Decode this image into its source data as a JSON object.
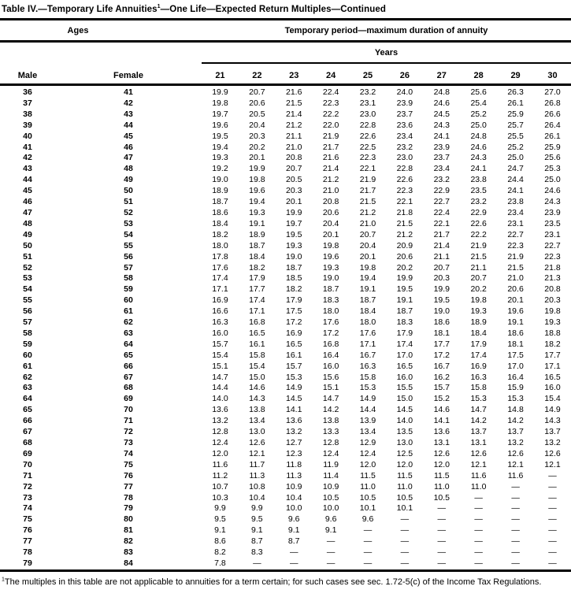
{
  "colors": {
    "text": "#000000",
    "background": "#ffffff",
    "rule": "#000000"
  },
  "title": {
    "main": "Table IV.—Temporary Life Annuities",
    "superscript": "1",
    "rest": "—One Life—Expected Return Multiples—Continued"
  },
  "header": {
    "ages_label": "Ages",
    "period_label": "Temporary period—maximum duration of annuity",
    "years_label": "Years",
    "male_label": "Male",
    "female_label": "Female",
    "year_columns": [
      "21",
      "22",
      "23",
      "24",
      "25",
      "26",
      "27",
      "28",
      "29",
      "30"
    ]
  },
  "empty_cell": "—",
  "rows": [
    {
      "male": "36",
      "female": "41",
      "values": [
        "19.9",
        "20.7",
        "21.6",
        "22.4",
        "23.2",
        "24.0",
        "24.8",
        "25.6",
        "26.3",
        "27.0"
      ]
    },
    {
      "male": "37",
      "female": "42",
      "values": [
        "19.8",
        "20.6",
        "21.5",
        "22.3",
        "23.1",
        "23.9",
        "24.6",
        "25.4",
        "26.1",
        "26.8"
      ]
    },
    {
      "male": "38",
      "female": "43",
      "values": [
        "19.7",
        "20.5",
        "21.4",
        "22.2",
        "23.0",
        "23.7",
        "24.5",
        "25.2",
        "25.9",
        "26.6"
      ]
    },
    {
      "male": "39",
      "female": "44",
      "values": [
        "19.6",
        "20.4",
        "21.2",
        "22.0",
        "22.8",
        "23.6",
        "24.3",
        "25.0",
        "25.7",
        "26.4"
      ]
    },
    {
      "male": "40",
      "female": "45",
      "values": [
        "19.5",
        "20.3",
        "21.1",
        "21.9",
        "22.6",
        "23.4",
        "24.1",
        "24.8",
        "25.5",
        "26.1"
      ]
    },
    {
      "male": "41",
      "female": "46",
      "values": [
        "19.4",
        "20.2",
        "21.0",
        "21.7",
        "22.5",
        "23.2",
        "23.9",
        "24.6",
        "25.2",
        "25.9"
      ]
    },
    {
      "male": "42",
      "female": "47",
      "values": [
        "19.3",
        "20.1",
        "20.8",
        "21.6",
        "22.3",
        "23.0",
        "23.7",
        "24.3",
        "25.0",
        "25.6"
      ]
    },
    {
      "male": "43",
      "female": "48",
      "values": [
        "19.2",
        "19.9",
        "20.7",
        "21.4",
        "22.1",
        "22.8",
        "23.4",
        "24.1",
        "24.7",
        "25.3"
      ]
    },
    {
      "male": "44",
      "female": "49",
      "values": [
        "19.0",
        "19.8",
        "20.5",
        "21.2",
        "21.9",
        "22.6",
        "23.2",
        "23.8",
        "24.4",
        "25.0"
      ]
    },
    {
      "male": "45",
      "female": "50",
      "values": [
        "18.9",
        "19.6",
        "20.3",
        "21.0",
        "21.7",
        "22.3",
        "22.9",
        "23.5",
        "24.1",
        "24.6"
      ]
    },
    {
      "male": "46",
      "female": "51",
      "values": [
        "18.7",
        "19.4",
        "20.1",
        "20.8",
        "21.5",
        "22.1",
        "22.7",
        "23.2",
        "23.8",
        "24.3"
      ]
    },
    {
      "male": "47",
      "female": "52",
      "values": [
        "18.6",
        "19.3",
        "19.9",
        "20.6",
        "21.2",
        "21.8",
        "22.4",
        "22.9",
        "23.4",
        "23.9"
      ]
    },
    {
      "male": "48",
      "female": "53",
      "values": [
        "18.4",
        "19.1",
        "19.7",
        "20.4",
        "21.0",
        "21.5",
        "22.1",
        "22.6",
        "23.1",
        "23.5"
      ]
    },
    {
      "male": "49",
      "female": "54",
      "values": [
        "18.2",
        "18.9",
        "19.5",
        "20.1",
        "20.7",
        "21.2",
        "21.7",
        "22.2",
        "22.7",
        "23.1"
      ]
    },
    {
      "male": "50",
      "female": "55",
      "values": [
        "18.0",
        "18.7",
        "19.3",
        "19.8",
        "20.4",
        "20.9",
        "21.4",
        "21.9",
        "22.3",
        "22.7"
      ]
    },
    {
      "male": "51",
      "female": "56",
      "values": [
        "17.8",
        "18.4",
        "19.0",
        "19.6",
        "20.1",
        "20.6",
        "21.1",
        "21.5",
        "21.9",
        "22.3"
      ]
    },
    {
      "male": "52",
      "female": "57",
      "values": [
        "17.6",
        "18.2",
        "18.7",
        "19.3",
        "19.8",
        "20.2",
        "20.7",
        "21.1",
        "21.5",
        "21.8"
      ]
    },
    {
      "male": "53",
      "female": "58",
      "values": [
        "17.4",
        "17.9",
        "18.5",
        "19.0",
        "19.4",
        "19.9",
        "20.3",
        "20.7",
        "21.0",
        "21.3"
      ]
    },
    {
      "male": "54",
      "female": "59",
      "values": [
        "17.1",
        "17.7",
        "18.2",
        "18.7",
        "19.1",
        "19.5",
        "19.9",
        "20.2",
        "20.6",
        "20.8"
      ]
    },
    {
      "male": "55",
      "female": "60",
      "values": [
        "16.9",
        "17.4",
        "17.9",
        "18.3",
        "18.7",
        "19.1",
        "19.5",
        "19.8",
        "20.1",
        "20.3"
      ]
    },
    {
      "male": "56",
      "female": "61",
      "values": [
        "16.6",
        "17.1",
        "17.5",
        "18.0",
        "18.4",
        "18.7",
        "19.0",
        "19.3",
        "19.6",
        "19.8"
      ]
    },
    {
      "male": "57",
      "female": "62",
      "values": [
        "16.3",
        "16.8",
        "17.2",
        "17.6",
        "18.0",
        "18.3",
        "18.6",
        "18.9",
        "19.1",
        "19.3"
      ]
    },
    {
      "male": "58",
      "female": "63",
      "values": [
        "16.0",
        "16.5",
        "16.9",
        "17.2",
        "17.6",
        "17.9",
        "18.1",
        "18.4",
        "18.6",
        "18.8"
      ]
    },
    {
      "male": "59",
      "female": "64",
      "values": [
        "15.7",
        "16.1",
        "16.5",
        "16.8",
        "17.1",
        "17.4",
        "17.7",
        "17.9",
        "18.1",
        "18.2"
      ]
    },
    {
      "male": "60",
      "female": "65",
      "values": [
        "15.4",
        "15.8",
        "16.1",
        "16.4",
        "16.7",
        "17.0",
        "17.2",
        "17.4",
        "17.5",
        "17.7"
      ]
    },
    {
      "male": "61",
      "female": "66",
      "values": [
        "15.1",
        "15.4",
        "15.7",
        "16.0",
        "16.3",
        "16.5",
        "16.7",
        "16.9",
        "17.0",
        "17.1"
      ]
    },
    {
      "male": "62",
      "female": "67",
      "values": [
        "14.7",
        "15.0",
        "15.3",
        "15.6",
        "15.8",
        "16.0",
        "16.2",
        "16.3",
        "16.4",
        "16.5"
      ]
    },
    {
      "male": "63",
      "female": "68",
      "values": [
        "14.4",
        "14.6",
        "14.9",
        "15.1",
        "15.3",
        "15.5",
        "15.7",
        "15.8",
        "15.9",
        "16.0"
      ]
    },
    {
      "male": "64",
      "female": "69",
      "values": [
        "14.0",
        "14.3",
        "14.5",
        "14.7",
        "14.9",
        "15.0",
        "15.2",
        "15.3",
        "15.3",
        "15.4"
      ]
    },
    {
      "male": "65",
      "female": "70",
      "values": [
        "13.6",
        "13.8",
        "14.1",
        "14.2",
        "14.4",
        "14.5",
        "14.6",
        "14.7",
        "14.8",
        "14.9"
      ]
    },
    {
      "male": "66",
      "female": "71",
      "values": [
        "13.2",
        "13.4",
        "13.6",
        "13.8",
        "13.9",
        "14.0",
        "14.1",
        "14.2",
        "14.2",
        "14.3"
      ]
    },
    {
      "male": "67",
      "female": "72",
      "values": [
        "12.8",
        "13.0",
        "13.2",
        "13.3",
        "13.4",
        "13.5",
        "13.6",
        "13.7",
        "13.7",
        "13.7"
      ]
    },
    {
      "male": "68",
      "female": "73",
      "values": [
        "12.4",
        "12.6",
        "12.7",
        "12.8",
        "12.9",
        "13.0",
        "13.1",
        "13.1",
        "13.2",
        "13.2"
      ]
    },
    {
      "male": "69",
      "female": "74",
      "values": [
        "12.0",
        "12.1",
        "12.3",
        "12.4",
        "12.4",
        "12.5",
        "12.6",
        "12.6",
        "12.6",
        "12.6"
      ]
    },
    {
      "male": "70",
      "female": "75",
      "values": [
        "11.6",
        "11.7",
        "11.8",
        "11.9",
        "12.0",
        "12.0",
        "12.0",
        "12.1",
        "12.1",
        "12.1"
      ]
    },
    {
      "male": "71",
      "female": "76",
      "values": [
        "11.2",
        "11.3",
        "11.3",
        "11.4",
        "11.5",
        "11.5",
        "11.5",
        "11.6",
        "11.6",
        "—"
      ]
    },
    {
      "male": "72",
      "female": "77",
      "values": [
        "10.7",
        "10.8",
        "10.9",
        "10.9",
        "11.0",
        "11.0",
        "11.0",
        "11.0",
        "—",
        "—"
      ]
    },
    {
      "male": "73",
      "female": "78",
      "values": [
        "10.3",
        "10.4",
        "10.4",
        "10.5",
        "10.5",
        "10.5",
        "10.5",
        "—",
        "—",
        "—"
      ]
    },
    {
      "male": "74",
      "female": "79",
      "values": [
        "9.9",
        "9.9",
        "10.0",
        "10.0",
        "10.1",
        "10.1",
        "—",
        "—",
        "—",
        "—"
      ]
    },
    {
      "male": "75",
      "female": "80",
      "values": [
        "9.5",
        "9.5",
        "9.6",
        "9.6",
        "9.6",
        "—",
        "—",
        "—",
        "—",
        "—"
      ]
    },
    {
      "male": "76",
      "female": "81",
      "values": [
        "9.1",
        "9.1",
        "9.1",
        "9.1",
        "—",
        "—",
        "—",
        "—",
        "—",
        "—"
      ]
    },
    {
      "male": "77",
      "female": "82",
      "values": [
        "8.6",
        "8.7",
        "8.7",
        "—",
        "—",
        "—",
        "—",
        "—",
        "—",
        "—"
      ]
    },
    {
      "male": "78",
      "female": "83",
      "values": [
        "8.2",
        "8.3",
        "—",
        "—",
        "—",
        "—",
        "—",
        "—",
        "—",
        "—"
      ]
    },
    {
      "male": "79",
      "female": "84",
      "values": [
        "7.8",
        "—",
        "—",
        "—",
        "—",
        "—",
        "—",
        "—",
        "—",
        "—"
      ]
    }
  ],
  "footnote": {
    "superscript": "1",
    "text": "The multiples in this table are not applicable to annuities for a term certain; for such cases see sec. 1.72-5(c) of the Income Tax Regulations."
  }
}
